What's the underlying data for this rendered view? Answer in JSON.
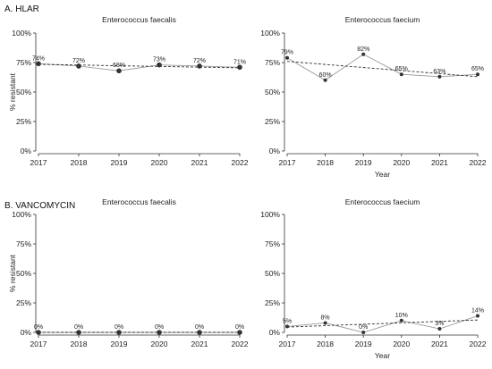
{
  "sections": [
    {
      "title": "A. HLAR",
      "panels": [
        {
          "title": "Enterococcus faecalis",
          "ylabel": "% resistant",
          "xlabel": "",
          "x": [
            2017,
            2018,
            2019,
            2020,
            2021,
            2022
          ],
          "values": [
            74,
            72,
            68,
            73,
            72,
            71
          ],
          "labels": [
            "74%",
            "72%",
            "68%",
            "73%",
            "72%",
            "71%"
          ],
          "trend": [
            73.5,
            70.5
          ]
        },
        {
          "title": "Enterococcus faecium",
          "ylabel": "",
          "xlabel": "Year",
          "x": [
            2017,
            2018,
            2019,
            2020,
            2021,
            2022
          ],
          "values": [
            79,
            60,
            82,
            65,
            63,
            65
          ],
          "labels": [
            "79%",
            "60%",
            "82%",
            "65%",
            "63%",
            "65%"
          ],
          "trend": [
            76,
            63
          ]
        }
      ]
    },
    {
      "title": "B. VANCOMYCIN",
      "panels": [
        {
          "title": "Enterococcus faecalis",
          "ylabel": "% resistant",
          "xlabel": "",
          "x": [
            2017,
            2018,
            2019,
            2020,
            2021,
            2022
          ],
          "values": [
            0,
            0,
            0,
            0,
            0,
            0
          ],
          "labels": [
            "0%",
            "0%",
            "0%",
            "0%",
            "0%",
            "0%"
          ],
          "trend": [
            0,
            0
          ]
        },
        {
          "title": "Enterococcus faecium",
          "ylabel": "",
          "xlabel": "Year",
          "x": [
            2017,
            2018,
            2019,
            2020,
            2021,
            2022
          ],
          "values": [
            5,
            8,
            0,
            10,
            3,
            14
          ],
          "labels": [
            "5%",
            "8%",
            "0%",
            "10%",
            "3%",
            "14%"
          ],
          "trend": [
            4.5,
            10.5
          ]
        }
      ]
    }
  ],
  "chart_data": [
    {
      "type": "line",
      "title": "Enterococcus faecalis",
      "group": "A. HLAR",
      "x": [
        2017,
        2018,
        2019,
        2020,
        2021,
        2022
      ],
      "series": [
        {
          "name": "",
          "values": [
            74,
            72,
            68,
            73,
            72,
            71
          ]
        }
      ],
      "ylabel": "% resistant",
      "ylim": [
        0,
        100
      ],
      "yticks": [
        "0%",
        "25%",
        "50%",
        "75%",
        "100%"
      ],
      "trendline": "dashed",
      "grid": false
    },
    {
      "type": "line",
      "title": "Enterococcus faecium",
      "group": "A. HLAR",
      "x": [
        2017,
        2018,
        2019,
        2020,
        2021,
        2022
      ],
      "series": [
        {
          "name": "",
          "values": [
            79,
            60,
            82,
            65,
            63,
            65
          ]
        }
      ],
      "xlabel": "Year",
      "ylim": [
        0,
        100
      ],
      "yticks": [
        "0%",
        "25%",
        "50%",
        "75%",
        "100%"
      ],
      "trendline": "dashed",
      "grid": false
    },
    {
      "type": "line",
      "title": "Enterococcus faecalis",
      "group": "B. VANCOMYCIN",
      "x": [
        2017,
        2018,
        2019,
        2020,
        2021,
        2022
      ],
      "series": [
        {
          "name": "",
          "values": [
            0,
            0,
            0,
            0,
            0,
            0
          ]
        }
      ],
      "ylabel": "% resistant",
      "ylim": [
        0,
        100
      ],
      "yticks": [
        "0%",
        "25%",
        "50%",
        "75%",
        "100%"
      ],
      "trendline": "dashed",
      "grid": false
    },
    {
      "type": "line",
      "title": "Enterococcus faecium",
      "group": "B. VANCOMYCIN",
      "x": [
        2017,
        2018,
        2019,
        2020,
        2021,
        2022
      ],
      "series": [
        {
          "name": "",
          "values": [
            5,
            8,
            0,
            10,
            3,
            14
          ]
        }
      ],
      "xlabel": "Year",
      "ylim": [
        0,
        100
      ],
      "yticks": [
        "0%",
        "25%",
        "50%",
        "75%",
        "100%"
      ],
      "trendline": "dashed",
      "grid": false
    }
  ],
  "axis": {
    "yticks": [
      "0%",
      "25%",
      "50%",
      "75%",
      "100%"
    ],
    "ytick_values": [
      0,
      25,
      50,
      75,
      100
    ],
    "xticks": [
      "2017",
      "2018",
      "2019",
      "2020",
      "2021",
      "2022"
    ]
  }
}
